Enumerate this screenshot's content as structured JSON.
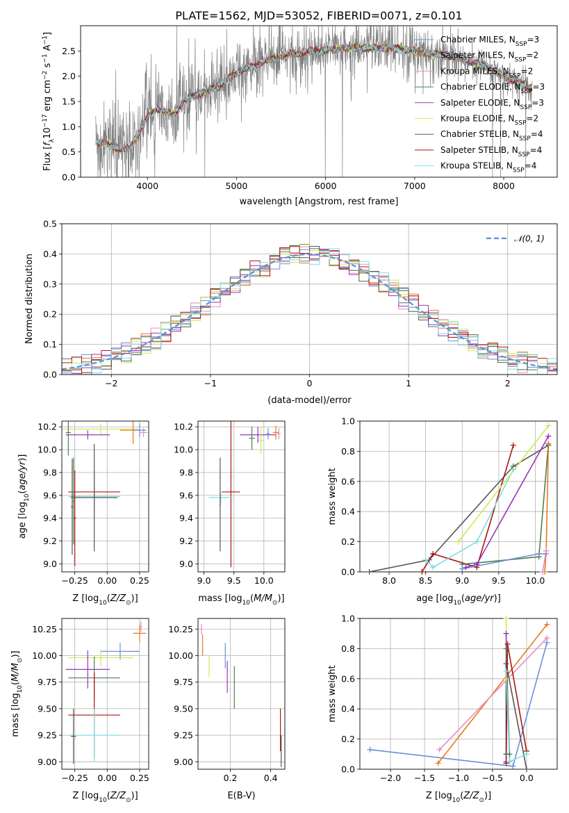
{
  "colors": {
    "Chabrier MILES": "#6a8fd8",
    "Salpeter MILES": "#e67a1e",
    "Kroupa MILES": "#e98bc6",
    "Chabrier ELODIE": "#4f7f4f",
    "Salpeter ELODIE": "#9a33b8",
    "Kroupa ELODIE": "#cde85a",
    "Chabrier STELIB": "#555555",
    "Salpeter STELIB": "#aa1414",
    "Kroupa STELIB": "#7fdde0",
    "data": "#808080",
    "gaussian": "#5b8fd6"
  },
  "chart_data": [
    {
      "id": "spectrum",
      "type": "line",
      "title": "PLATE=1562, MJD=53052, FIBERID=0071, z=0.101",
      "xlabel": "wavelength [Angstrom, rest frame]",
      "ylabel": "Flux [fλ10⁻¹⁷ erg cm⁻² s⁻¹ A⁻¹]",
      "xlim": [
        3250,
        8600
      ],
      "ylim": [
        0,
        3.0
      ],
      "xticks": [
        4000,
        5000,
        6000,
        7000,
        8000
      ],
      "yticks": [
        0.0,
        0.5,
        1.0,
        1.5,
        2.0,
        2.5
      ],
      "legend": "upper-right",
      "series": [
        {
          "name": "Chabrier MILES",
          "nssp": "3"
        },
        {
          "name": "Salpeter MILES",
          "nssp": "2"
        },
        {
          "name": "Kroupa MILES",
          "nssp": "2"
        },
        {
          "name": "Chabrier ELODIE",
          "nssp": "3"
        },
        {
          "name": "Salpeter ELODIE",
          "nssp": "3"
        },
        {
          "name": "Kroupa ELODIE",
          "nssp": "2"
        },
        {
          "name": "Chabrier STELIB",
          "nssp": "4"
        },
        {
          "name": "Salpeter STELIB",
          "nssp": "4"
        },
        {
          "name": "Kroupa STELIB",
          "nssp": "4"
        }
      ],
      "continuum": {
        "x": [
          3420,
          3600,
          3700,
          3800,
          3900,
          4000,
          4100,
          4200,
          4300,
          4400,
          4500,
          4600,
          4700,
          4800,
          4900,
          5000,
          5100,
          5200,
          5300,
          5400,
          5500,
          5600,
          5700,
          5800,
          5900,
          6000,
          6200,
          6400,
          6600,
          6800,
          7000,
          7200,
          7400,
          7600,
          7800,
          8000,
          8200,
          8320
        ],
        "y": [
          0.7,
          0.62,
          0.55,
          0.58,
          0.85,
          1.2,
          1.35,
          1.3,
          1.25,
          1.5,
          1.6,
          1.65,
          1.75,
          1.8,
          1.95,
          2.05,
          2.15,
          2.2,
          2.3,
          2.35,
          2.4,
          2.45,
          2.45,
          2.5,
          2.5,
          2.52,
          2.55,
          2.56,
          2.55,
          2.55,
          2.5,
          2.45,
          2.4,
          2.3,
          2.2,
          2.0,
          1.85,
          1.75
        ]
      }
    },
    {
      "id": "residuals",
      "type": "line",
      "xlabel": "(data-model)/error",
      "ylabel": "Normed distribution",
      "xlim": [
        -2.5,
        2.5
      ],
      "ylim": [
        0,
        0.5
      ],
      "xticks": [
        -2,
        -1,
        0,
        1,
        2
      ],
      "yticks": [
        0.0,
        0.1,
        0.2,
        0.3,
        0.4,
        0.5
      ],
      "legend": "upper-right",
      "legend_label": "𝒩(0, 1)",
      "bin_width": 0.1
    },
    {
      "id": "age_vs_z",
      "type": "scatter",
      "xlabel": "Z [log10(Z/Z⊙)]",
      "ylabel": "age  [log10(age/yr)]",
      "xlim": [
        -0.35,
        0.32
      ],
      "ylim": [
        8.93,
        10.25
      ],
      "xticks": [
        -0.25,
        0.0,
        0.25
      ],
      "yticks": [
        9.0,
        9.2,
        9.4,
        9.6,
        9.8,
        10.0,
        10.2
      ],
      "points": [
        {
          "series": "Kroupa ELODIE",
          "x": -0.05,
          "y": 10.18,
          "xerr": 0.3,
          "yerr": 0.05
        },
        {
          "series": "Salpeter ELODIE",
          "x": -0.15,
          "y": 10.13,
          "xerr": 0.17,
          "yerr": 0.04
        },
        {
          "series": "Kroupa MILES",
          "x": 0.28,
          "y": 10.15,
          "xerr": 0.03,
          "yerr": 0.04
        },
        {
          "series": "Salpeter MILES",
          "x": 0.2,
          "y": 10.17,
          "xerr": 0.1,
          "yerr": 0.12
        },
        {
          "series": "Chabrier MILES",
          "x": 0.25,
          "y": 10.17,
          "xerr": 0.05,
          "yerr": 0.06
        },
        {
          "series": "Chabrier ELODIE",
          "x": -0.3,
          "y": 10.15,
          "xerr": 0.02,
          "yerr": 0.2
        },
        {
          "series": "Salpeter STELIB",
          "x": -0.1,
          "y": 9.63,
          "xerr": 0.2,
          "yerr": 0.18
        },
        {
          "series": "Kroupa STELIB",
          "x": -0.1,
          "y": 9.59,
          "xerr": 0.2,
          "yerr": 0.22
        },
        {
          "series": "Chabrier STELIB",
          "x": -0.1,
          "y": 9.58,
          "xerr": 0.18,
          "yerr": 0.47
        },
        {
          "series": "Salpeter STELIB",
          "x": -0.25,
          "y": 9.4,
          "xerr": 0.01,
          "yerr": 0.42
        },
        {
          "series": "Chabrier STELIB",
          "x": -0.27,
          "y": 9.5,
          "xerr": 0.01,
          "yerr": 0.42
        },
        {
          "series": "Chabrier ELODIE",
          "x": -0.26,
          "y": 9.55,
          "xerr": 0.01,
          "yerr": 0.38
        }
      ]
    },
    {
      "id": "age_vs_mass",
      "type": "scatter",
      "xlabel": "mass [log10(M/M⊙)]",
      "xlim": [
        8.9,
        10.35
      ],
      "ylim": [
        8.93,
        10.25
      ],
      "xticks": [
        9.0,
        9.5,
        10.0
      ],
      "yticks": [
        9.0,
        9.2,
        9.4,
        9.6,
        9.8,
        10.0,
        10.2
      ],
      "points": [
        {
          "series": "Salpeter ELODIE",
          "x": 9.9,
          "y": 10.13,
          "xerr": 0.3,
          "yerr": 0.07
        },
        {
          "series": "Chabrier ELODIE",
          "x": 9.8,
          "y": 10.1,
          "xerr": 0.05,
          "yerr": 0.1
        },
        {
          "series": "Kroupa ELODIE",
          "x": 9.95,
          "y": 10.08,
          "xerr": 0.04,
          "yerr": 0.12
        },
        {
          "series": "Salpeter MILES",
          "x": 10.2,
          "y": 10.15,
          "xerr": 0.05,
          "yerr": 0.06
        },
        {
          "series": "Kroupa MILES",
          "x": 10.25,
          "y": 10.14,
          "xerr": 0.03,
          "yerr": 0.05
        },
        {
          "series": "Chabrier MILES",
          "x": 10.07,
          "y": 10.14,
          "xerr": 0.03,
          "yerr": 0.05
        },
        {
          "series": "Salpeter STELIB",
          "x": 9.45,
          "y": 9.63,
          "xerr": 0.15,
          "yerr": 0.66
        },
        {
          "series": "Kroupa STELIB",
          "x": 9.28,
          "y": 9.58,
          "xerr": 0.2,
          "yerr": 0.05
        },
        {
          "series": "Chabrier STELIB",
          "x": 9.27,
          "y": 9.52,
          "xerr": 0.01,
          "yerr": 0.41
        }
      ]
    },
    {
      "id": "mw_vs_age",
      "type": "line",
      "xlabel": "age  [log10(age/yr)]",
      "ylabel": "mass weight",
      "xlim": [
        7.6,
        10.3
      ],
      "ylim": [
        0,
        1.0
      ],
      "xticks": [
        8.0,
        8.5,
        9.0,
        9.5,
        10.0
      ],
      "yticks": [
        0.0,
        0.2,
        0.4,
        0.6,
        0.8,
        1.0
      ],
      "series": [
        {
          "name": "Chabrier STELIB",
          "x": [
            7.73,
            8.55,
            9.7,
            10.18
          ],
          "y": [
            0.0,
            0.08,
            0.7,
            0.84
          ]
        },
        {
          "name": "Salpeter STELIB",
          "x": [
            8.45,
            8.6,
            9.2,
            9.7
          ],
          "y": [
            0.0,
            0.12,
            0.03,
            0.84
          ]
        },
        {
          "name": "Kroupa STELIB",
          "x": [
            8.5,
            8.6,
            9.2,
            9.7
          ],
          "y": [
            0.08,
            0.03,
            0.2,
            0.68
          ]
        },
        {
          "name": "Chabrier ELODIE",
          "x": [
            9.0,
            10.05,
            10.18
          ],
          "y": [
            0.05,
            0.1,
            0.85
          ]
        },
        {
          "name": "Salpeter ELODIE",
          "x": [
            9.05,
            9.2,
            10.18
          ],
          "y": [
            0.03,
            0.05,
            0.9
          ]
        },
        {
          "name": "Kroupa ELODIE",
          "x": [
            8.95,
            10.18
          ],
          "y": [
            0.2,
            0.97
          ]
        },
        {
          "name": "Chabrier MILES",
          "x": [
            9.0,
            10.05,
            10.15
          ],
          "y": [
            0.02,
            0.12,
            0.12
          ]
        },
        {
          "name": "Salpeter MILES",
          "x": [
            10.13,
            10.15,
            10.18
          ],
          "y": [
            0.0,
            0.14,
            0.85
          ]
        },
        {
          "name": "Kroupa MILES",
          "x": [
            10.1,
            10.15
          ],
          "y": [
            0.0,
            0.14
          ]
        }
      ]
    },
    {
      "id": "mass_vs_z",
      "type": "scatter",
      "xlabel": "Z [log10(Z/Z⊙)]",
      "ylabel": "mass [log10(M/M⊙)]",
      "xlim": [
        -0.35,
        0.32
      ],
      "ylim": [
        8.93,
        10.35
      ],
      "xticks": [
        -0.25,
        0.0,
        0.25
      ],
      "yticks": [
        9.0,
        9.25,
        9.5,
        9.75,
        10.0,
        10.25
      ],
      "points": [
        {
          "series": "Kroupa MILES",
          "x": 0.26,
          "y": 10.27,
          "xerr": 0.01,
          "yerr": 0.05
        },
        {
          "series": "Salpeter MILES",
          "x": 0.25,
          "y": 10.21,
          "xerr": 0.05,
          "yerr": 0.08
        },
        {
          "series": "Chabrier MILES",
          "x": 0.1,
          "y": 10.04,
          "xerr": 0.15,
          "yerr": 0.08
        },
        {
          "series": "Kroupa ELODIE",
          "x": -0.05,
          "y": 9.98,
          "xerr": 0.25,
          "yerr": 0.08
        },
        {
          "series": "Salpeter ELODIE",
          "x": -0.15,
          "y": 9.87,
          "xerr": 0.17,
          "yerr": 0.18
        },
        {
          "series": "Chabrier ELODIE",
          "x": -0.1,
          "y": 9.79,
          "xerr": 0.2,
          "yerr": 0.2
        },
        {
          "series": "Salpeter STELIB",
          "x": -0.1,
          "y": 9.44,
          "xerr": 0.2,
          "yerr": 0.4
        },
        {
          "series": "Kroupa STELIB",
          "x": -0.1,
          "y": 9.25,
          "xerr": 0.2,
          "yerr": 0.25
        },
        {
          "series": "Chabrier STELIB",
          "x": -0.26,
          "y": 9.24,
          "xerr": 0.02,
          "yerr": 0.26
        }
      ]
    },
    {
      "id": "mass_vs_ebv",
      "type": "scatter",
      "xlabel": "E(B-V)",
      "xlim": [
        0.04,
        0.47
      ],
      "ylim": [
        8.93,
        10.35
      ],
      "xticks": [
        0.2,
        0.4
      ],
      "yticks": [
        9.0,
        9.25,
        9.5,
        9.75,
        10.0,
        10.25
      ],
      "points": [
        {
          "series": "Kroupa MILES",
          "x": 0.057,
          "y": 10.25,
          "yerr": 0.05
        },
        {
          "series": "Salpeter MILES",
          "x": 0.063,
          "y": 10.1,
          "yerr": 0.1
        },
        {
          "series": "Kroupa ELODIE",
          "x": 0.095,
          "y": 9.9,
          "yerr": 0.1
        },
        {
          "series": "Chabrier MILES",
          "x": 0.175,
          "y": 10.0,
          "yerr": 0.12
        },
        {
          "series": "Salpeter ELODIE",
          "x": 0.185,
          "y": 9.8,
          "yerr": 0.15
        },
        {
          "series": "Chabrier ELODIE",
          "x": 0.22,
          "y": 9.7,
          "yerr": 0.2
        },
        {
          "series": "Salpeter STELIB",
          "x": 0.448,
          "y": 9.3,
          "yerr": 0.2
        },
        {
          "series": "Chabrier STELIB",
          "x": 0.452,
          "y": 9.1,
          "yerr": 0.15
        }
      ]
    },
    {
      "id": "mw_vs_z",
      "type": "line",
      "xlabel": "Z [log10(Z/Z⊙)]",
      "ylabel": "mass weight",
      "xlim": [
        -2.45,
        0.45
      ],
      "ylim": [
        0,
        1.0
      ],
      "xticks": [
        -2.0,
        -1.5,
        -1.0,
        -0.5,
        0.0
      ],
      "yticks": [
        0.0,
        0.2,
        0.4,
        0.6,
        0.8,
        1.0
      ],
      "series": [
        {
          "name": "Chabrier MILES",
          "x": [
            -2.3,
            -0.2,
            0.3
          ],
          "y": [
            0.13,
            0.02,
            0.84
          ]
        },
        {
          "name": "Salpeter MILES",
          "x": [
            -1.3,
            0.3
          ],
          "y": [
            0.04,
            0.96
          ]
        },
        {
          "name": "Kroupa MILES",
          "x": [
            -1.28,
            0.3
          ],
          "y": [
            0.13,
            0.87
          ]
        },
        {
          "name": "Kroupa ELODIE",
          "x": [
            -0.3,
            -0.3
          ],
          "y": [
            0.6,
            1.0
          ]
        },
        {
          "name": "Salpeter ELODIE",
          "x": [
            -0.3,
            -0.3
          ],
          "y": [
            0.05,
            0.9
          ]
        },
        {
          "name": "Chabrier ELODIE",
          "x": [
            -0.3,
            -0.25,
            -0.25
          ],
          "y": [
            0.8,
            0.1,
            0.05
          ]
        },
        {
          "name": "Chabrier STELIB",
          "x": [
            -0.3,
            -0.3,
            0.0
          ],
          "y": [
            0.1,
            0.7,
            0.0
          ]
        },
        {
          "name": "Salpeter STELIB",
          "x": [
            -0.3,
            -0.28,
            0.0
          ],
          "y": [
            0.04,
            0.83,
            0.12
          ]
        },
        {
          "name": "Kroupa STELIB",
          "x": [
            -0.3,
            -0.25,
            0.0
          ],
          "y": [
            0.65,
            0.05,
            0.1
          ]
        }
      ]
    }
  ]
}
